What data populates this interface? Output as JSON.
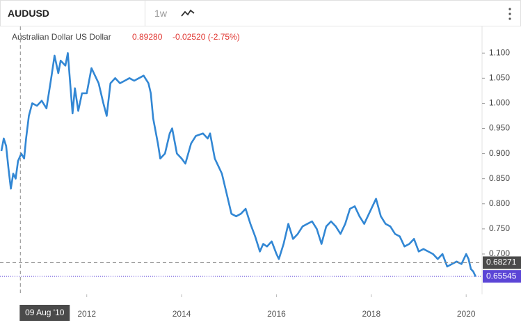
{
  "toolbar": {
    "symbol": "AUDUSD",
    "interval": "1w"
  },
  "chart_data": {
    "type": "line",
    "legend": {
      "name": "Australian Dollar US Dollar",
      "price": "0.89280",
      "change": "-0.02520 (-2.75%)"
    },
    "x": [
      2010.2,
      2010.25,
      2010.3,
      2010.35,
      2010.4,
      2010.45,
      2010.5,
      2010.55,
      2010.62,
      2010.68,
      2010.72,
      2010.78,
      2010.85,
      2010.95,
      2011.05,
      2011.15,
      2011.25,
      2011.32,
      2011.4,
      2011.45,
      2011.55,
      2011.6,
      2011.65,
      2011.7,
      2011.75,
      2011.82,
      2011.9,
      2012.0,
      2012.1,
      2012.25,
      2012.35,
      2012.42,
      2012.5,
      2012.6,
      2012.7,
      2012.8,
      2012.9,
      2013.0,
      2013.1,
      2013.2,
      2013.3,
      2013.35,
      2013.4,
      2013.5,
      2013.55,
      2013.65,
      2013.75,
      2013.8,
      2013.9,
      2014.0,
      2014.08,
      2014.2,
      2014.3,
      2014.45,
      2014.55,
      2014.6,
      2014.7,
      2014.75,
      2014.85,
      2014.95,
      2015.05,
      2015.15,
      2015.25,
      2015.35,
      2015.45,
      2015.55,
      2015.65,
      2015.72,
      2015.8,
      2015.9,
      2016.0,
      2016.05,
      2016.15,
      2016.25,
      2016.35,
      2016.45,
      2016.55,
      2016.65,
      2016.75,
      2016.85,
      2016.95,
      2017.05,
      2017.15,
      2017.25,
      2017.35,
      2017.45,
      2017.55,
      2017.65,
      2017.75,
      2017.85,
      2017.95,
      2018.05,
      2018.1,
      2018.2,
      2018.3,
      2018.4,
      2018.5,
      2018.6,
      2018.7,
      2018.8,
      2018.9,
      2019.0,
      2019.1,
      2019.2,
      2019.3,
      2019.4,
      2019.5,
      2019.6,
      2019.7,
      2019.8,
      2019.9,
      2020.0,
      2020.05,
      2020.1,
      2020.15,
      2020.2
    ],
    "series": [
      {
        "name": "Australian Dollar US Dollar",
        "color": "#3287d4",
        "values": [
          0.905,
          0.93,
          0.915,
          0.87,
          0.83,
          0.86,
          0.85,
          0.885,
          0.9,
          0.89,
          0.93,
          0.975,
          1.0,
          0.995,
          1.005,
          0.99,
          1.05,
          1.095,
          1.06,
          1.085,
          1.075,
          1.1,
          1.04,
          0.98,
          1.03,
          0.985,
          1.02,
          1.02,
          1.07,
          1.04,
          1.0,
          0.975,
          1.04,
          1.05,
          1.04,
          1.045,
          1.05,
          1.045,
          1.05,
          1.055,
          1.04,
          1.02,
          0.97,
          0.92,
          0.89,
          0.9,
          0.94,
          0.95,
          0.9,
          0.89,
          0.88,
          0.92,
          0.935,
          0.94,
          0.93,
          0.94,
          0.89,
          0.88,
          0.86,
          0.82,
          0.78,
          0.775,
          0.78,
          0.79,
          0.76,
          0.735,
          0.705,
          0.72,
          0.715,
          0.725,
          0.7,
          0.69,
          0.72,
          0.76,
          0.73,
          0.74,
          0.755,
          0.76,
          0.765,
          0.75,
          0.72,
          0.755,
          0.765,
          0.755,
          0.74,
          0.76,
          0.79,
          0.795,
          0.775,
          0.76,
          0.78,
          0.8,
          0.81,
          0.775,
          0.76,
          0.755,
          0.74,
          0.735,
          0.715,
          0.72,
          0.73,
          0.705,
          0.71,
          0.705,
          0.7,
          0.69,
          0.7,
          0.675,
          0.68,
          0.685,
          0.68,
          0.7,
          0.69,
          0.67,
          0.665,
          0.655
        ]
      }
    ],
    "xlim": [
      2010.2,
      2020.32
    ],
    "xticks": [
      2012,
      2014,
      2016,
      2018,
      2020
    ],
    "ylim": [
      0.621,
      1.153
    ],
    "yticks": [
      {
        "value": 0.7,
        "label": "0.700"
      },
      {
        "value": 0.75,
        "label": "0.750"
      },
      {
        "value": 0.8,
        "label": "0.800"
      },
      {
        "value": 0.85,
        "label": "0.850"
      },
      {
        "value": 0.9,
        "label": "0.900"
      },
      {
        "value": 0.95,
        "label": "0.950"
      },
      {
        "value": 1.0,
        "label": "1.000"
      },
      {
        "value": 1.05,
        "label": "1.050"
      },
      {
        "value": 1.1,
        "label": "1.100"
      }
    ],
    "crosshair": {
      "x_label": "09 Aug '10",
      "x": 2010.6,
      "y": 0.68271
    },
    "last_price": 0.65545
  }
}
